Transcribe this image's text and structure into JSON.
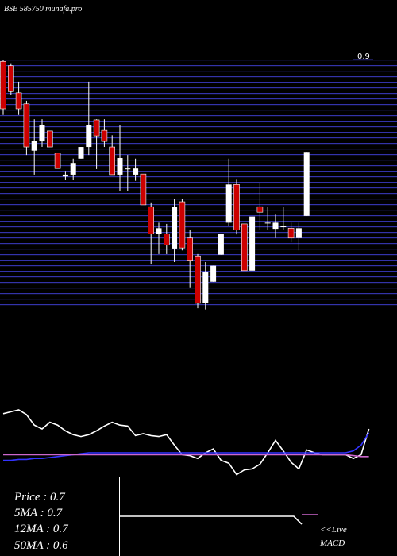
{
  "chart_data": [
    {
      "type": "candlestick",
      "title": "BSE 585750 munafa.pro",
      "ylim": [
        0.5,
        0.9
      ],
      "yticks": [
        0.9
      ],
      "up_color": "#ffffff",
      "down_color": "#cc0000",
      "grid_color": "#3333aa",
      "open": [
        0.897,
        0.89,
        0.846,
        0.828,
        0.752,
        0.767,
        0.784,
        0.748,
        0.71,
        0.713,
        0.739,
        0.758,
        0.802,
        0.785,
        0.758,
        0.713,
        0.723,
        0.713,
        0.714,
        0.661,
        0.617,
        0.617,
        0.593,
        0.669,
        0.61,
        0.581,
        0.504,
        0.539,
        0.583,
        0.635,
        0.697,
        0.633,
        0.557,
        0.661,
        0.635,
        0.625,
        0.629,
        0.626,
        0.61,
        0.646
      ],
      "high": [
        0.9,
        0.894,
        0.864,
        0.833,
        0.803,
        0.803,
        0.784,
        0.748,
        0.719,
        0.739,
        0.758,
        0.864,
        0.803,
        0.803,
        0.777,
        0.794,
        0.745,
        0.739,
        0.714,
        0.668,
        0.635,
        0.633,
        0.674,
        0.674,
        0.623,
        0.584,
        0.571,
        0.565,
        0.617,
        0.739,
        0.706,
        0.633,
        0.645,
        0.7,
        0.661,
        0.648,
        0.661,
        0.635,
        0.635,
        0.75
      ],
      "low": [
        0.81,
        0.842,
        0.81,
        0.745,
        0.713,
        0.758,
        0.758,
        0.723,
        0.705,
        0.705,
        0.739,
        0.745,
        0.722,
        0.758,
        0.715,
        0.687,
        0.687,
        0.703,
        0.664,
        0.567,
        0.584,
        0.584,
        0.571,
        0.59,
        0.53,
        0.496,
        0.494,
        0.539,
        0.583,
        0.629,
        0.616,
        0.557,
        0.557,
        0.623,
        0.623,
        0.61,
        0.623,
        0.603,
        0.59,
        0.646
      ],
      "close": [
        0.82,
        0.848,
        0.82,
        0.758,
        0.768,
        0.793,
        0.758,
        0.723,
        0.713,
        0.732,
        0.758,
        0.794,
        0.776,
        0.767,
        0.713,
        0.74,
        0.723,
        0.723,
        0.664,
        0.617,
        0.626,
        0.599,
        0.661,
        0.594,
        0.574,
        0.504,
        0.555,
        0.565,
        0.617,
        0.697,
        0.623,
        0.557,
        0.645,
        0.652,
        0.635,
        0.635,
        0.629,
        0.61,
        0.626,
        0.75
      ]
    },
    {
      "type": "line",
      "ylim": [
        0,
        100
      ],
      "series": [
        {
          "color": "#ffffff",
          "values": [
            66,
            68,
            70,
            65,
            54,
            50,
            57,
            54,
            48,
            44,
            42,
            44,
            48,
            53,
            57,
            54,
            53,
            43,
            45,
            43,
            42,
            44,
            33,
            23,
            22,
            19,
            25,
            29,
            17,
            14,
            2,
            7,
            8,
            13,
            25,
            38,
            27,
            15,
            8,
            28,
            25,
            23,
            23,
            23,
            23,
            19,
            23,
            50
          ]
        },
        {
          "color": "#3333ff",
          "values": [
            17,
            17,
            18,
            18,
            19,
            19,
            20,
            21,
            22,
            23,
            24,
            25,
            25,
            25,
            25,
            25,
            25,
            25,
            25,
            25,
            25,
            25,
            25,
            25,
            25,
            25,
            25,
            25,
            25,
            25,
            25,
            25,
            25,
            25,
            25,
            25,
            25,
            25,
            25,
            25,
            25,
            25,
            25,
            25,
            25,
            27,
            33,
            46
          ]
        },
        {
          "color": "#cc66cc",
          "values": [
            23,
            23,
            23,
            23,
            23,
            23,
            23,
            23,
            23,
            23,
            23,
            23,
            23,
            23,
            23,
            23,
            23,
            23,
            23,
            23,
            23,
            23,
            23,
            23,
            23,
            23,
            23,
            23,
            23,
            23,
            23,
            23,
            23,
            23,
            23,
            23,
            23,
            23,
            23,
            23,
            23,
            23,
            23,
            23,
            23,
            22,
            21,
            21
          ]
        }
      ]
    },
    {
      "type": "line",
      "ylim": [
        0,
        100
      ],
      "series": [
        {
          "color": "#ffffff",
          "values": [
            50,
            50,
            50,
            50,
            50,
            50,
            50,
            50,
            50,
            50,
            50,
            50,
            50,
            50,
            50,
            50,
            50,
            50,
            50,
            50,
            50,
            50,
            50,
            40,
            null,
            null
          ]
        },
        {
          "color": "#cc66cc",
          "values": [
            null,
            null,
            null,
            null,
            null,
            null,
            null,
            null,
            null,
            null,
            null,
            null,
            null,
            null,
            null,
            null,
            null,
            null,
            null,
            null,
            null,
            null,
            null,
            52,
            52,
            52
          ]
        }
      ]
    }
  ],
  "info": [
    "Price   : 0.7",
    "5MA : 0.7",
    "12MA : 0.7",
    "50MA : 0.6"
  ],
  "live": "<<Live",
  "macd": "MACD"
}
